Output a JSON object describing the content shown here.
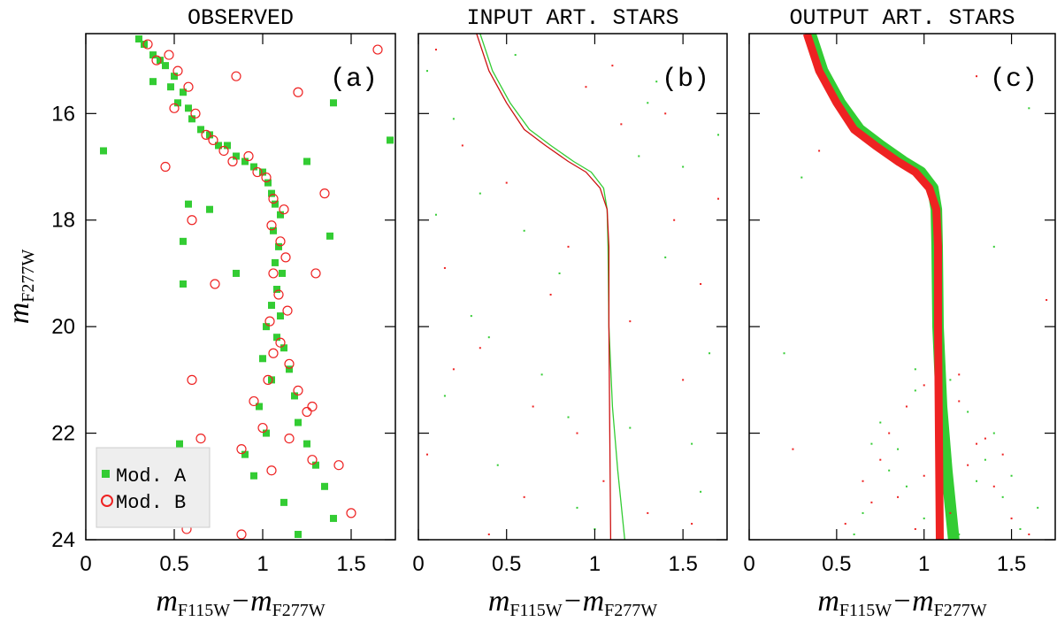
{
  "chart_data": [
    {
      "type": "scatter",
      "title": "OBSERVED",
      "panel_label": "(a)",
      "xlabel": [
        "m",
        "F115W",
        "−m",
        "F277W"
      ],
      "ylabel": [
        "m",
        "F277W"
      ],
      "xlim": [
        0,
        1.75
      ],
      "ylim": [
        24,
        14.5
      ],
      "xticks": [
        0,
        0.5,
        1,
        1.5
      ],
      "yticks": [
        16,
        18,
        20,
        22,
        24
      ],
      "show_ytick_labels": true,
      "legend": "lower left",
      "series": [
        {
          "name": "Mod. A",
          "color": "#33cc33",
          "marker": "square",
          "x": [
            0.3,
            0.33,
            0.38,
            0.42,
            0.45,
            0.5,
            0.48,
            0.55,
            0.52,
            0.58,
            0.6,
            0.65,
            0.7,
            0.75,
            0.8,
            0.85,
            0.9,
            0.95,
            1.0,
            1.03,
            1.05,
            1.07,
            1.1,
            1.06,
            1.09,
            1.07,
            1.11,
            1.08,
            1.05,
            1.1,
            1.02,
            1.08,
            1.12,
            1.0,
            1.15,
            1.05,
            1.18,
            0.98,
            1.2,
            1.02,
            1.25,
            0.9,
            1.3,
            0.95,
            1.35,
            1.12,
            1.4,
            1.2,
            0.1,
            1.72,
            1.38,
            0.55,
            0.55,
            1.4,
            0.7,
            0.58,
            0.38,
            0.53,
            0.85,
            1.25
          ],
          "y": [
            14.6,
            14.7,
            14.9,
            15.0,
            15.1,
            15.3,
            15.5,
            15.6,
            15.8,
            15.9,
            16.1,
            16.3,
            16.4,
            16.6,
            16.6,
            16.8,
            16.9,
            17.0,
            17.1,
            17.3,
            17.5,
            17.7,
            17.9,
            18.2,
            18.5,
            18.8,
            19.0,
            19.3,
            19.6,
            19.8,
            20.0,
            20.2,
            20.4,
            20.6,
            20.8,
            21.0,
            21.3,
            21.5,
            21.8,
            22.0,
            22.2,
            22.4,
            22.6,
            22.8,
            23.0,
            23.3,
            23.6,
            23.9,
            16.7,
            16.5,
            18.3,
            18.4,
            19.2,
            15.8,
            17.8,
            17.7,
            15.4,
            22.2,
            19.0,
            16.9
          ]
        },
        {
          "name": "Mod. B",
          "color": "#ee2222",
          "marker": "circle",
          "x": [
            0.35,
            0.4,
            0.47,
            0.52,
            0.58,
            0.5,
            0.62,
            0.68,
            0.72,
            0.78,
            0.83,
            0.92,
            0.97,
            1.02,
            1.06,
            1.12,
            1.05,
            1.1,
            1.13,
            1.06,
            1.09,
            1.14,
            1.04,
            1.1,
            1.06,
            1.15,
            1.03,
            1.2,
            0.95,
            1.25,
            1.0,
            1.15,
            0.88,
            1.28,
            1.05,
            1.43,
            0.65,
            1.5,
            0.57,
            0.88,
            1.65,
            0.73,
            0.6,
            1.3,
            0.85,
            1.35,
            0.45,
            1.2,
            0.6,
            1.28
          ],
          "y": [
            14.7,
            15.0,
            14.9,
            15.2,
            15.5,
            15.9,
            16.0,
            16.4,
            16.5,
            16.7,
            16.9,
            16.8,
            17.1,
            17.2,
            17.6,
            17.8,
            18.1,
            18.4,
            18.7,
            19.0,
            19.4,
            19.7,
            19.9,
            20.3,
            20.5,
            20.7,
            21.0,
            21.2,
            21.4,
            21.6,
            21.9,
            22.1,
            22.3,
            22.5,
            22.7,
            22.6,
            22.1,
            23.5,
            23.8,
            23.9,
            14.8,
            19.2,
            18.0,
            19.0,
            15.3,
            17.5,
            17.0,
            15.6,
            21.0,
            21.5
          ]
        }
      ]
    },
    {
      "type": "scatter",
      "title": "INPUT ART. STARS",
      "panel_label": "(b)",
      "xlabel": [
        "m",
        "F115W",
        "−m",
        "F277W"
      ],
      "xlim": [
        0,
        1.75
      ],
      "ylim": [
        24,
        14.5
      ],
      "xticks": [
        0,
        0.5,
        1,
        1.5
      ],
      "yticks": [
        16,
        18,
        20,
        22,
        24
      ],
      "show_ytick_labels": false,
      "series": [
        {
          "color": "#33cc33",
          "marker": "dot",
          "x": [
            0.05,
            0.2,
            0.35,
            0.6,
            0.8,
            1.3,
            1.5,
            1.65,
            0.15,
            0.45,
            0.9,
            1.2,
            1.4,
            1.7,
            0.3,
            0.7,
            1.0,
            1.55,
            0.1,
            0.55,
            1.25,
            1.6,
            0.85,
            0.4,
            1.35
          ],
          "y": [
            15.2,
            16.1,
            17.5,
            18.2,
            19.0,
            15.8,
            17.0,
            20.5,
            21.3,
            22.6,
            23.4,
            21.9,
            18.7,
            16.4,
            19.8,
            20.9,
            23.8,
            22.2,
            17.9,
            14.9,
            16.8,
            23.1,
            21.7,
            20.2,
            15.4
          ]
        },
        {
          "color": "#ee2222",
          "marker": "dot",
          "x": [
            0.1,
            0.25,
            0.5,
            0.75,
            0.95,
            1.15,
            1.45,
            1.6,
            0.2,
            0.65,
            1.05,
            1.3,
            1.5,
            0.05,
            0.4,
            0.85,
            1.2,
            1.7,
            0.35,
            0.6,
            1.4,
            0.9,
            1.1,
            0.15,
            1.55
          ],
          "y": [
            14.8,
            16.6,
            17.3,
            19.4,
            15.5,
            16.2,
            18.0,
            19.2,
            20.8,
            21.5,
            22.9,
            23.5,
            21.0,
            22.4,
            23.9,
            18.5,
            19.9,
            17.6,
            20.4,
            23.2,
            16.0,
            22.0,
            15.1,
            18.9,
            23.7
          ]
        },
        {
          "color": "#33cc33",
          "marker": "line",
          "x": [
            0.35,
            0.42,
            0.52,
            0.63,
            0.75,
            0.88,
            0.98,
            1.05,
            1.07,
            1.075,
            1.08,
            1.1,
            1.13,
            1.17
          ],
          "y": [
            14.5,
            15.2,
            15.8,
            16.3,
            16.6,
            16.9,
            17.1,
            17.4,
            17.8,
            18.5,
            20,
            21.5,
            22.7,
            24
          ]
        },
        {
          "color": "#cc1111",
          "marker": "line",
          "x": [
            0.33,
            0.4,
            0.5,
            0.6,
            0.72,
            0.85,
            0.95,
            1.03,
            1.07,
            1.08,
            1.08,
            1.085,
            1.09
          ],
          "y": [
            14.5,
            15.2,
            15.8,
            16.3,
            16.6,
            16.9,
            17.1,
            17.4,
            17.8,
            18.5,
            20,
            22,
            24
          ]
        }
      ]
    },
    {
      "type": "scatter",
      "title": "OUTPUT ART. STARS",
      "panel_label": "(c)",
      "xlabel": [
        "m",
        "F115W",
        "−m",
        "F277W"
      ],
      "xlim": [
        0,
        1.75
      ],
      "ylim": [
        24,
        14.5
      ],
      "xticks": [
        0,
        0.5,
        1,
        1.5
      ],
      "yticks": [
        16,
        18,
        20,
        22,
        24
      ],
      "show_ytick_labels": false,
      "series": [
        {
          "color": "#33cc33",
          "marker": "band",
          "x": [
            0.35,
            0.42,
            0.52,
            0.63,
            0.75,
            0.88,
            0.98,
            1.05,
            1.07,
            1.075,
            1.08,
            1.1,
            1.13,
            1.17
          ],
          "y": [
            14.5,
            15.2,
            15.8,
            16.3,
            16.6,
            16.9,
            17.1,
            17.4,
            17.8,
            18.5,
            20,
            21.5,
            22.7,
            24
          ]
        },
        {
          "color": "#ee2222",
          "marker": "band",
          "x": [
            0.33,
            0.4,
            0.5,
            0.6,
            0.72,
            0.85,
            0.95,
            1.03,
            1.07,
            1.08,
            1.08,
            1.085,
            1.09
          ],
          "y": [
            14.5,
            15.2,
            15.8,
            16.3,
            16.6,
            16.9,
            17.1,
            17.4,
            17.8,
            18.5,
            20,
            22,
            24
          ]
        },
        {
          "color": "#33cc33",
          "marker": "dot",
          "x": [
            0.75,
            0.85,
            0.95,
            1.25,
            1.35,
            1.45,
            0.65,
            1.55,
            0.9,
            1.3,
            0.8,
            1.4,
            1.0,
            1.2,
            0.7,
            1.5,
            0.6,
            1.65,
            0.95,
            1.15,
            0.3,
            1.6,
            0.2,
            1.4
          ],
          "y": [
            21.8,
            22.3,
            21.2,
            21.6,
            22.5,
            23.2,
            23.5,
            23.8,
            23.0,
            22.9,
            22.7,
            22.0,
            23.6,
            23.9,
            22.2,
            22.8,
            23.9,
            23.4,
            20.8,
            21.0,
            17.2,
            15.9,
            20.5,
            18.5
          ]
        },
        {
          "color": "#ee2222",
          "marker": "dot",
          "x": [
            0.8,
            0.9,
            1.0,
            1.2,
            1.3,
            1.4,
            0.7,
            1.5,
            0.85,
            1.25,
            0.75,
            1.35,
            0.95,
            1.15,
            0.65,
            1.45,
            0.55,
            1.6,
            1.0,
            1.2,
            0.4,
            1.7,
            0.25,
            1.3
          ],
          "y": [
            22.0,
            21.5,
            22.8,
            21.4,
            22.2,
            23.0,
            23.3,
            23.6,
            23.2,
            22.6,
            22.5,
            22.1,
            23.8,
            23.5,
            22.9,
            22.4,
            23.7,
            23.9,
            21.1,
            20.9,
            16.7,
            19.5,
            22.3,
            15.3
          ]
        }
      ]
    }
  ]
}
